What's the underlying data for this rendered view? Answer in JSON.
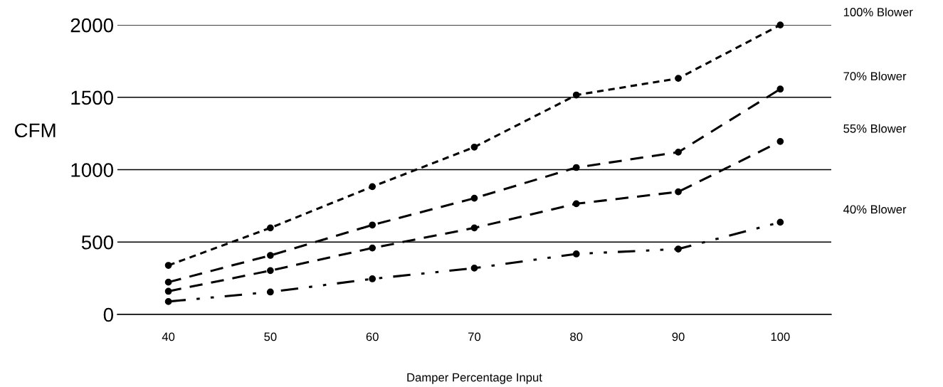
{
  "chart_data": {
    "type": "line",
    "xlabel": "Damper Percentage Input",
    "ylabel": "CFM",
    "x": [
      40,
      50,
      60,
      70,
      80,
      90,
      100
    ],
    "series": [
      {
        "name": "100% Blower",
        "color": "#000000",
        "line_style": "dotted",
        "values": [
          339,
          598,
          883,
          1156,
          1516,
          1631,
          2000
        ]
      },
      {
        "name": "70% Blower",
        "color": "#000000",
        "line_style": "dashed",
        "values": [
          223,
          408,
          618,
          803,
          1015,
          1121,
          1557
        ]
      },
      {
        "name": "55% Blower",
        "color": "#000000",
        "line_style": "dashed",
        "values": [
          160,
          303,
          459,
          598,
          765,
          847,
          1195
        ]
      },
      {
        "name": "40% Blower",
        "color": "#000000",
        "line_style": "dashdot",
        "values": [
          89,
          155,
          246,
          320,
          418,
          452,
          637
        ]
      }
    ],
    "xlim": [
      35,
      105
    ],
    "ylim": [
      0,
      2000
    ],
    "xticks": [
      40,
      50,
      60,
      70,
      80,
      90,
      100
    ],
    "yticks": [
      0,
      500,
      1000,
      1500,
      2000
    ],
    "grid": "y",
    "legend": false,
    "marker": "circle"
  }
}
